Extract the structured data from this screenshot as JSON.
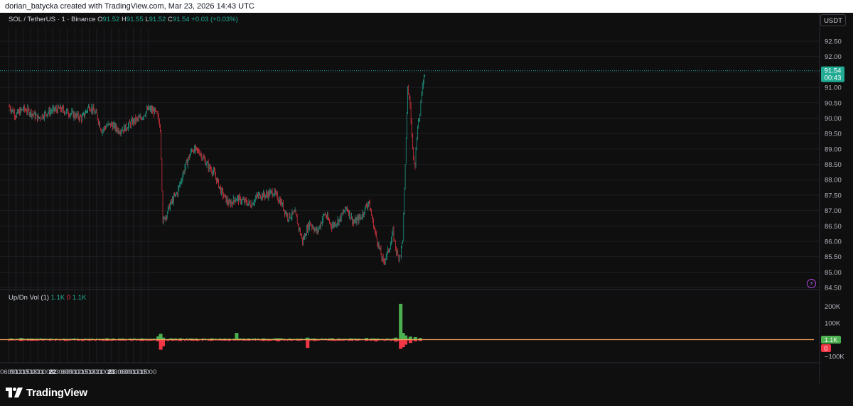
{
  "header": {
    "attribution": "dorian_batycka created with TradingView.com, Mar 23, 2026 14:43 UTC"
  },
  "brand": {
    "name": "TradingView"
  },
  "currency_button": "USDT",
  "colors": {
    "up": "#22ab94",
    "down": "#f23645",
    "vol_up": "#4caf50",
    "vol_down": "#f23645"
  },
  "icons": {
    "brand": "tradingview-logo-icon",
    "alert": "lightning-icon"
  },
  "price_legend": {
    "symbol": "SOL / TetherUS · 1 · Binance",
    "open_label": "O",
    "open": "91.52",
    "high_label": "H",
    "high": "91.55",
    "low_label": "L",
    "low": "91.52",
    "close_label": "C",
    "close": "91.54",
    "change": "+0.03 (+0.03%)"
  },
  "volume_legend": {
    "name": "Up/Dn Vol (1)",
    "up": "1.1K",
    "zero": "0",
    "total": "1.1K"
  },
  "last_price": {
    "price": "91.54",
    "countdown": "00:43"
  },
  "volume_badges": {
    "up": "1.1K",
    "zero": "0"
  },
  "chart_data": [
    {
      "type": "line",
      "title": "SOL / TetherUS · 1 · Binance",
      "x_labels": [
        "06:00",
        "09:00",
        "12:00",
        "15:00",
        "18:00",
        "21:00",
        "22",
        "03:00",
        "06:00",
        "09:00",
        "12:00",
        "15:00",
        "18:00",
        "21:00",
        "23",
        "03:00",
        "06:00",
        "09:00",
        "12:00",
        "15:00"
      ],
      "y_ticks": [
        "92.50",
        "92.00",
        "91.50",
        "91.00",
        "90.50",
        "90.00",
        "89.50",
        "89.00",
        "88.50",
        "88.00",
        "87.50",
        "87.00",
        "86.50",
        "86.00",
        "85.50",
        "85.00",
        "84.50"
      ],
      "ylim": [
        84.5,
        92.5
      ],
      "x_hours": [
        0,
        3,
        6,
        9,
        12,
        14,
        15,
        18,
        21,
        24,
        27,
        30,
        33,
        36,
        38,
        40,
        42,
        45,
        48,
        51,
        54,
        57,
        60,
        61,
        62,
        63,
        66,
        69,
        72,
        75,
        78,
        81,
        84,
        87,
        90,
        93,
        96,
        99,
        102,
        105,
        108,
        111,
        114,
        117,
        120,
        123,
        126,
        129,
        132,
        135,
        138,
        141,
        144,
        147,
        150,
        153,
        156,
        157,
        158,
        159,
        160,
        161,
        162,
        163,
        164,
        165,
        166,
        167,
        168,
        169,
        170
      ],
      "values": [
        90.4,
        90.1,
        90.3,
        90.2,
        90.0,
        90.1,
        90.15,
        90.25,
        90.3,
        90.2,
        90.1,
        90.0,
        90.4,
        90.1,
        89.6,
        89.75,
        89.8,
        89.6,
        89.7,
        89.9,
        90.0,
        90.3,
        90.2,
        90.0,
        89.7,
        86.6,
        87.2,
        87.6,
        88.4,
        89.0,
        88.9,
        88.5,
        88.2,
        87.6,
        87.2,
        87.4,
        87.3,
        87.2,
        87.5,
        87.5,
        87.6,
        87.3,
        86.8,
        86.9,
        86.0,
        86.6,
        86.3,
        86.9,
        86.5,
        86.7,
        87.1,
        86.6,
        86.8,
        87.3,
        86.2,
        85.3,
        85.9,
        86.3,
        85.8,
        85.5,
        85.6,
        86.1,
        88.5,
        91.0,
        90.4,
        89.0,
        88.5,
        89.8,
        90.1,
        91.1,
        91.5
      ],
      "last": 91.54
    },
    {
      "type": "bar",
      "title": "Up/Dn Vol (1)",
      "y_ticks": [
        "200K",
        "100K",
        "0",
        "−100K"
      ],
      "ylim": [
        -150000,
        230000
      ],
      "x_hours": [
        1,
        5,
        8,
        12,
        17,
        24,
        33,
        40,
        46,
        54,
        61,
        62,
        63,
        70,
        75,
        83,
        90,
        93,
        96,
        104,
        110,
        118,
        122,
        125,
        132,
        140,
        146,
        150,
        158,
        160,
        161,
        162,
        164,
        166,
        168
      ],
      "up": [
        7000,
        10000,
        6000,
        5000,
        6000,
        4000,
        5000,
        8000,
        6000,
        5000,
        20000,
        35000,
        12000,
        8000,
        6000,
        7000,
        5000,
        40000,
        4000,
        6000,
        8000,
        5000,
        12000,
        6000,
        8000,
        7000,
        10000,
        6000,
        12000,
        215000,
        40000,
        25000,
        18000,
        15000,
        10000
      ],
      "down": [
        -5000,
        -8000,
        -4000,
        -5000,
        -4000,
        -6000,
        -5000,
        -6000,
        -4000,
        -5000,
        -10000,
        -60000,
        -40000,
        -8000,
        -6000,
        -5000,
        -6000,
        -4000,
        -6000,
        -8000,
        -10000,
        -6000,
        -50000,
        -8000,
        -6000,
        -5000,
        -7000,
        -10000,
        -12000,
        -55000,
        -45000,
        -30000,
        -20000,
        -10000,
        -8000
      ]
    }
  ]
}
